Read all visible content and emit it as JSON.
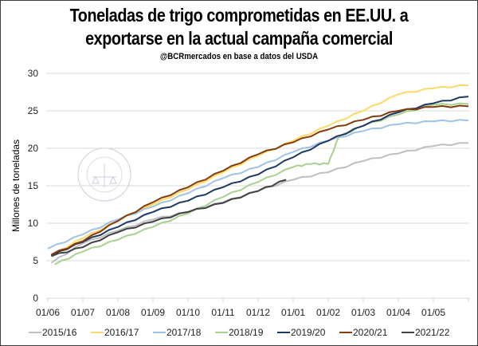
{
  "chart_data": {
    "type": "line",
    "title": "Toneladas de trigo comprometidas en EE.UU. a exportarse en la actual campaña comercial",
    "title_lines": [
      "Toneladas de trigo comprometidas en EE.UU. a",
      "exportarse en la actual campaña comercial"
    ],
    "subtitle": "@BCRmercados  en base a datos del USDA",
    "xlabel": "",
    "ylabel": "Millones de toneladas",
    "ylim": [
      0,
      30
    ],
    "yticks": [
      0,
      5,
      10,
      15,
      20,
      25,
      30
    ],
    "x_tick_labels": [
      "01/06",
      "01/07",
      "01/08",
      "01/09",
      "01/10",
      "01/11",
      "01/12",
      "01/01",
      "01/02",
      "01/03",
      "01/04",
      "01/05"
    ],
    "x_range_months": [
      0,
      12
    ],
    "grid": true,
    "legend_position": "bottom",
    "watermark": "BOLSA DE COMERCIO DE ROSARIO",
    "series": [
      {
        "name": "2015/16",
        "color": "#bfbfbf",
        "x": [
          0.1,
          1,
          2,
          3,
          4,
          5,
          6,
          7,
          8,
          9,
          10,
          11,
          12
        ],
        "values": [
          4.7,
          7.3,
          9.0,
          10.5,
          11.5,
          12.8,
          14.3,
          15.8,
          16.8,
          18.3,
          19.3,
          20.3,
          20.7
        ]
      },
      {
        "name": "2016/17",
        "color": "#ffd966",
        "x": [
          0.1,
          1,
          2,
          3,
          4,
          5,
          6,
          7,
          8,
          9,
          10,
          11,
          12
        ],
        "values": [
          5.7,
          8.0,
          10.3,
          12.5,
          14.5,
          16.8,
          19.0,
          21.0,
          23.0,
          25.0,
          27.2,
          28.0,
          28.4
        ]
      },
      {
        "name": "2017/18",
        "color": "#9dc3e6",
        "x": [
          0,
          1,
          2,
          3,
          4,
          5,
          6,
          7,
          8,
          9,
          10,
          11,
          12
        ],
        "values": [
          6.6,
          8.5,
          10.5,
          12.2,
          14.0,
          16.0,
          17.5,
          19.5,
          21.0,
          22.3,
          23.2,
          23.6,
          23.7
        ]
      },
      {
        "name": "2018/19",
        "color": "#a9d18e",
        "x": [
          0.2,
          1,
          2,
          3,
          4,
          5,
          6,
          7,
          7.5,
          8,
          8.3,
          9,
          10,
          11,
          12
        ],
        "values": [
          4.5,
          6.2,
          7.8,
          9.5,
          11.3,
          13.5,
          15.5,
          17.5,
          17.9,
          17.9,
          21.5,
          23.0,
          24.5,
          25.8,
          25.9
        ]
      },
      {
        "name": "2019/20",
        "color": "#1f3864",
        "x": [
          0.1,
          1,
          2,
          3,
          4,
          5,
          6,
          7,
          8,
          9,
          10,
          11,
          12
        ],
        "values": [
          5.7,
          7.5,
          9.5,
          11.5,
          13.0,
          14.8,
          16.5,
          18.8,
          21.0,
          23.0,
          24.8,
          26.0,
          26.9
        ]
      },
      {
        "name": "2020/21",
        "color": "#843c0c",
        "x": [
          0.1,
          1,
          2,
          3,
          4,
          5,
          6,
          7,
          8,
          9,
          10,
          11,
          12
        ],
        "values": [
          5.8,
          7.6,
          10.3,
          12.8,
          14.8,
          17.0,
          19.2,
          20.8,
          22.5,
          23.8,
          25.0,
          25.5,
          25.6
        ]
      },
      {
        "name": "2021/22",
        "color": "#404040",
        "x": [
          0.1,
          1,
          2,
          3,
          4,
          5,
          6,
          6.8
        ],
        "values": [
          5.6,
          6.8,
          8.8,
          10.2,
          11.5,
          12.7,
          14.3,
          15.8
        ]
      }
    ]
  }
}
